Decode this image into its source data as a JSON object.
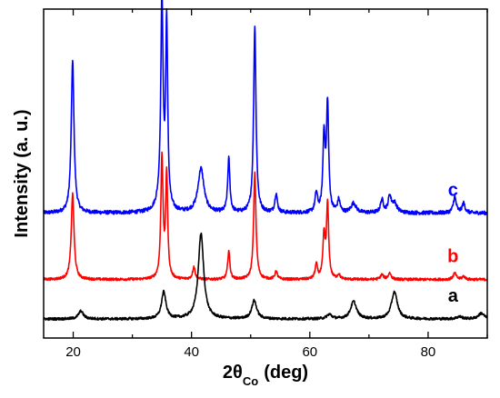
{
  "chart_data": {
    "type": "line",
    "title": "",
    "ylabel": "Intensity (a. u.)",
    "xlabel": {
      "main": "2θ",
      "subscript": "Co",
      "unit": "(deg)"
    },
    "xlim": [
      15,
      90
    ],
    "x_ticks": [
      20,
      40,
      60,
      80
    ],
    "y_ticks_labeled": false,
    "grid": false,
    "legend": "none; series labels printed next to traces on the right",
    "series": [
      {
        "name": "a",
        "color": "#000000",
        "baseline": 0.0,
        "noise": 0.004,
        "peaks": [
          {
            "x": 21.3,
            "height": 0.025,
            "width": 0.5
          },
          {
            "x": 35.3,
            "height": 0.085,
            "width": 0.45
          },
          {
            "x": 41.6,
            "height": 0.27,
            "width": 0.55
          },
          {
            "x": 50.6,
            "height": 0.058,
            "width": 0.5
          },
          {
            "x": 63.3,
            "height": 0.014,
            "width": 0.5
          },
          {
            "x": 67.4,
            "height": 0.055,
            "width": 0.6
          },
          {
            "x": 74.3,
            "height": 0.085,
            "width": 0.6
          },
          {
            "x": 85.3,
            "height": 0.007,
            "width": 0.6
          },
          {
            "x": 89.0,
            "height": 0.018,
            "width": 0.6
          }
        ]
      },
      {
        "name": "b",
        "color": "#ff0000",
        "baseline": 0.125,
        "noise": 0.004,
        "peaks": [
          {
            "x": 19.9,
            "height": 0.27,
            "width": 0.28
          },
          {
            "x": 35.0,
            "height": 0.385,
            "width": 0.22
          },
          {
            "x": 35.8,
            "height": 0.33,
            "width": 0.2
          },
          {
            "x": 40.4,
            "height": 0.04,
            "width": 0.25
          },
          {
            "x": 46.3,
            "height": 0.09,
            "width": 0.22
          },
          {
            "x": 50.7,
            "height": 0.335,
            "width": 0.24
          },
          {
            "x": 54.3,
            "height": 0.025,
            "width": 0.25
          },
          {
            "x": 61.1,
            "height": 0.045,
            "width": 0.25
          },
          {
            "x": 62.4,
            "height": 0.135,
            "width": 0.22
          },
          {
            "x": 63.0,
            "height": 0.235,
            "width": 0.22
          },
          {
            "x": 64.9,
            "height": 0.015,
            "width": 0.25
          },
          {
            "x": 72.2,
            "height": 0.015,
            "width": 0.3
          },
          {
            "x": 73.5,
            "height": 0.02,
            "width": 0.3
          },
          {
            "x": 84.5,
            "height": 0.02,
            "width": 0.3
          },
          {
            "x": 86.0,
            "height": 0.01,
            "width": 0.3
          }
        ]
      },
      {
        "name": "c",
        "color": "#0000ff",
        "baseline": 0.335,
        "noise": 0.006,
        "peaks": [
          {
            "x": 19.9,
            "height": 0.48,
            "width": 0.28
          },
          {
            "x": 35.0,
            "height": 0.63,
            "width": 0.22
          },
          {
            "x": 35.8,
            "height": 0.58,
            "width": 0.2
          },
          {
            "x": 34.9,
            "height": 0.05,
            "width": 0.7
          },
          {
            "x": 41.6,
            "height": 0.14,
            "width": 0.6
          },
          {
            "x": 46.3,
            "height": 0.17,
            "width": 0.22
          },
          {
            "x": 50.7,
            "height": 0.59,
            "width": 0.24
          },
          {
            "x": 54.3,
            "height": 0.06,
            "width": 0.25
          },
          {
            "x": 61.1,
            "height": 0.06,
            "width": 0.25
          },
          {
            "x": 62.4,
            "height": 0.24,
            "width": 0.22
          },
          {
            "x": 63.0,
            "height": 0.34,
            "width": 0.22
          },
          {
            "x": 64.9,
            "height": 0.04,
            "width": 0.25
          },
          {
            "x": 67.4,
            "height": 0.03,
            "width": 0.5
          },
          {
            "x": 72.2,
            "height": 0.04,
            "width": 0.3
          },
          {
            "x": 73.5,
            "height": 0.05,
            "width": 0.3
          },
          {
            "x": 74.3,
            "height": 0.03,
            "width": 0.5
          },
          {
            "x": 84.5,
            "height": 0.05,
            "width": 0.3
          },
          {
            "x": 86.0,
            "height": 0.03,
            "width": 0.3
          }
        ]
      }
    ]
  }
}
